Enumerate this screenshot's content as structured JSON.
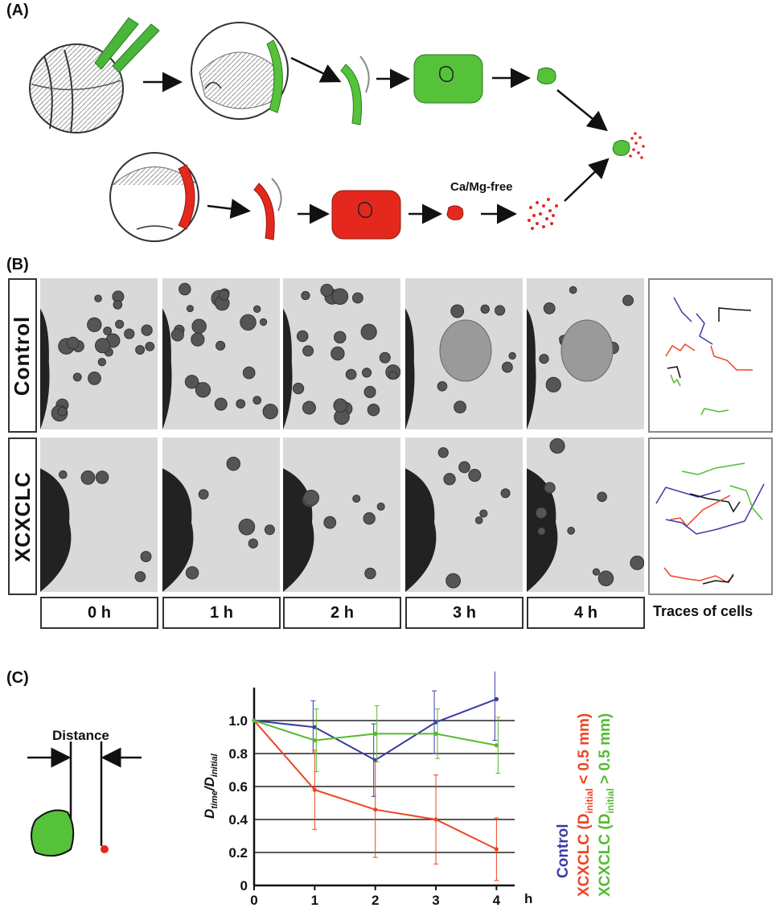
{
  "panels": {
    "a": {
      "label": "(A)",
      "treatment_label": "Ca/Mg-free"
    },
    "b": {
      "label": "(B)",
      "rows": [
        "Control",
        "XCXCLC"
      ],
      "times": [
        "0 h",
        "1 h",
        "2 h",
        "3 h",
        "4 h"
      ],
      "traces_label": "Traces of cells"
    },
    "c": {
      "label": "(C)",
      "distance_label": "Distance"
    }
  },
  "colors": {
    "control": "#3a3aa8",
    "near": "#ee4422",
    "far": "#55bb33",
    "green_tissue": "#55c23a",
    "red_tissue": "#e5281e"
  },
  "chart_data": {
    "type": "line",
    "x": [
      0,
      1,
      2,
      3,
      4
    ],
    "xlabel": "h",
    "ylabel_main": "D",
    "ylabel_sub1": "time",
    "ylabel_sep": "/D",
    "ylabel_sub2": "initial",
    "xlim": [
      0,
      4.3
    ],
    "ylim": [
      0,
      1.2
    ],
    "yticks": [
      0,
      0.2,
      0.4,
      0.6,
      0.8,
      1.0
    ],
    "ytick_labels": [
      "0",
      "0.2",
      "0.4",
      "0.6",
      "0.8",
      "1.0"
    ],
    "xtick_labels": [
      "0",
      "1",
      "2",
      "3",
      "4"
    ],
    "grid": true,
    "legend_position": "right",
    "series": [
      {
        "name": "Control",
        "color": "#3a3aa8",
        "values": [
          1.0,
          0.96,
          0.76,
          0.99,
          1.13
        ],
        "err": [
          0,
          0.16,
          0.22,
          0.19,
          0.25
        ]
      },
      {
        "name": "XCXCLC (D",
        "name_sub": "initial",
        "name_end": " < 0.5 mm)",
        "color": "#ee4422",
        "values": [
          1.0,
          0.58,
          0.46,
          0.4,
          0.22
        ],
        "err": [
          0,
          0.24,
          0.29,
          0.27,
          0.19
        ]
      },
      {
        "name": "XCXCLC (D",
        "name_sub": "initial",
        "name_end": " > 0.5 mm)",
        "color": "#55bb33",
        "values": [
          1.0,
          0.88,
          0.92,
          0.92,
          0.85
        ],
        "err": [
          0,
          0.19,
          0.17,
          0.15,
          0.17
        ]
      }
    ]
  }
}
